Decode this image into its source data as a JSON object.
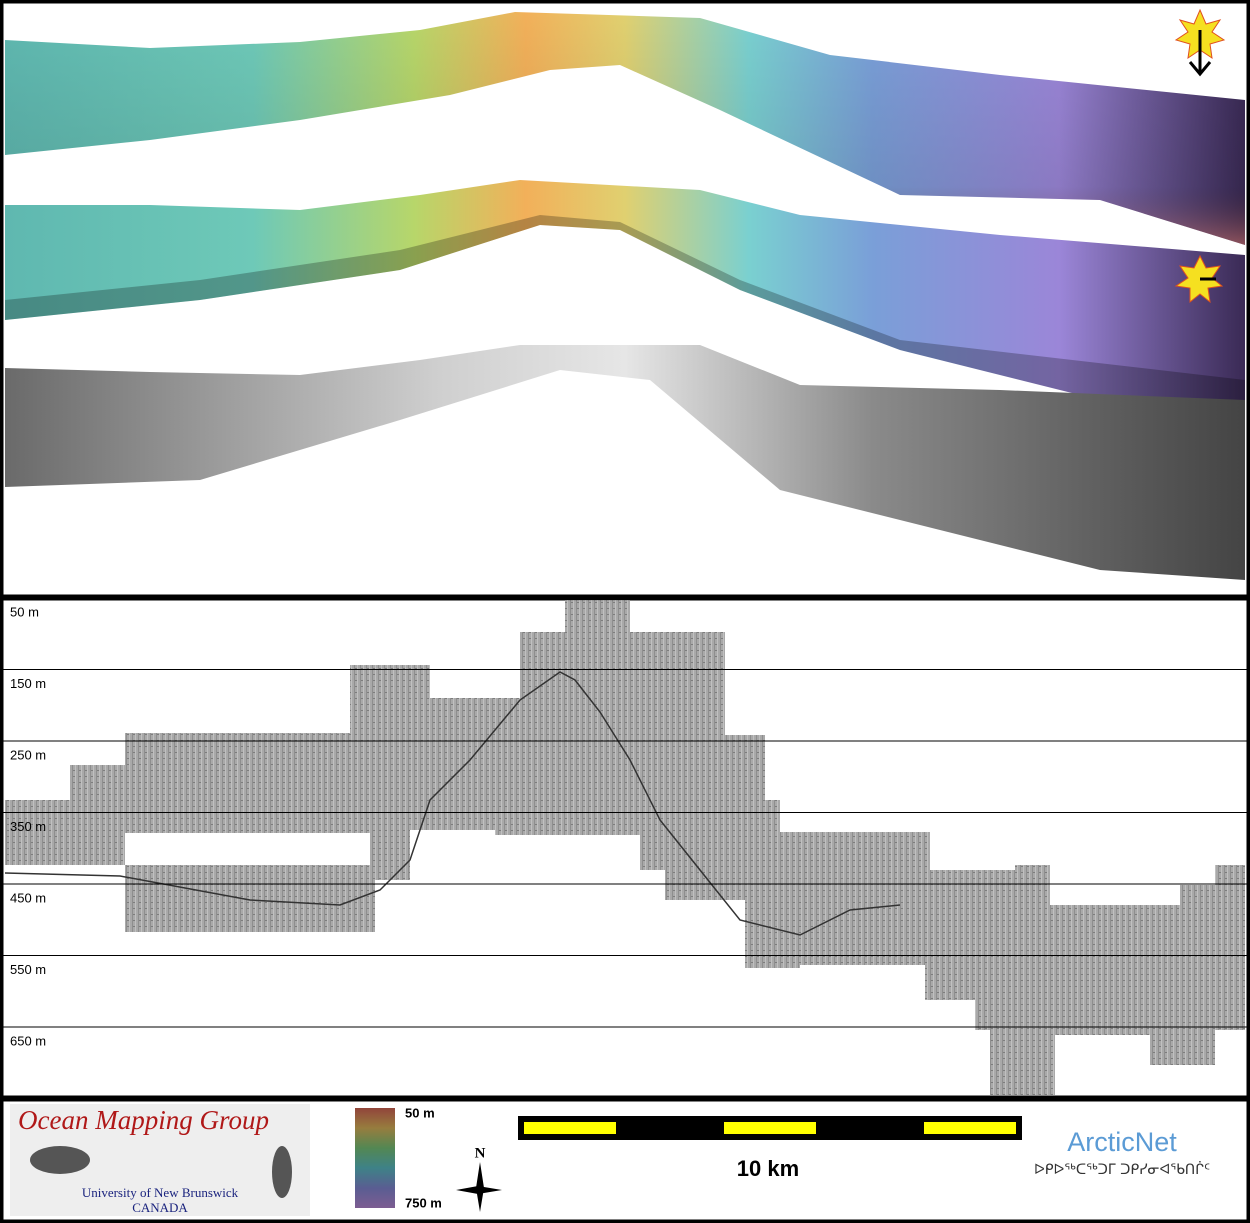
{
  "profile": {
    "depth_labels": [
      "50 m",
      "150 m",
      "250 m",
      "350 m",
      "450 m",
      "550 m",
      "650 m"
    ]
  },
  "footer": {
    "group": "Ocean Mapping Group",
    "university": "University of New Brunswick",
    "country": "CANADA",
    "colorbar_top": "50 m",
    "colorbar_bottom": "750 m",
    "north": "N",
    "scale": "10 km",
    "partner": "ArcticNet",
    "partner_subtitle": "ᐅᑭᐅᖅᑕᖅᑐᒥ ᑐᑭᓯᓂᐊᖃᑎᒌᑦ"
  }
}
